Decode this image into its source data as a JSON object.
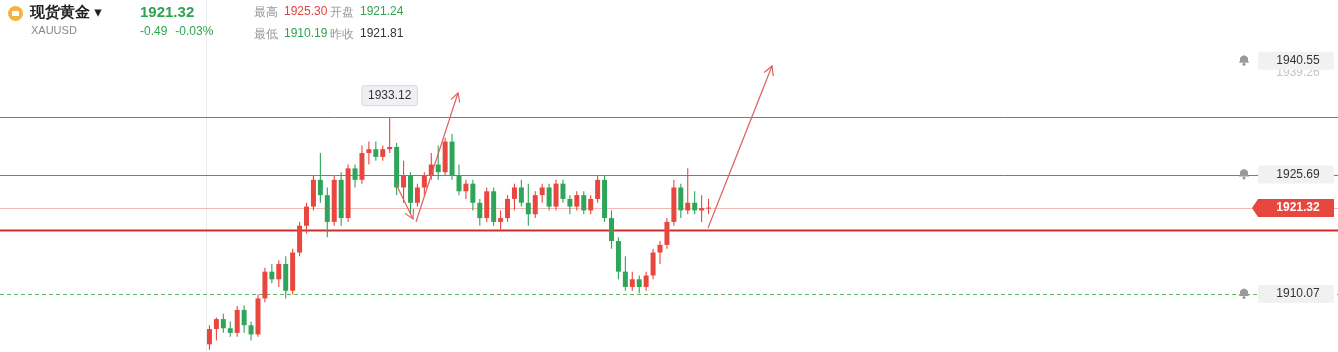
{
  "header": {
    "title": "现货黄金 ▾",
    "symbol": "XAUUSD",
    "price": "1921.32",
    "change": "-0.49",
    "change_percent": "-0.03%",
    "color": "#2ea44f",
    "stats": [
      {
        "label": "最高",
        "value": "1925.30",
        "color": "#e0443b"
      },
      {
        "label": "开盘",
        "value": "1921.24",
        "color": "#2ea44f"
      },
      {
        "label": "最低",
        "value": "1910.19",
        "color": "#2ea44f"
      },
      {
        "label": "昨收",
        "value": "1921.81",
        "color": "#333333"
      }
    ]
  },
  "chart_data": {
    "type": "candlestick",
    "categories": [
      null,
      null,
      null,
      null,
      null,
      null,
      null,
      null,
      null,
      null,
      null,
      null,
      null,
      null,
      null,
      null,
      null,
      null,
      null,
      null,
      null,
      null,
      null,
      null,
      null,
      null,
      null,
      null,
      null,
      null,
      null,
      null,
      null,
      null,
      null,
      null,
      null,
      null,
      null,
      null,
      null,
      null,
      null,
      null,
      null,
      null,
      null,
      null,
      null,
      null,
      null,
      null,
      null,
      null,
      null,
      null,
      null,
      null,
      null,
      null,
      null,
      null,
      null,
      null,
      null,
      null,
      null,
      null,
      null,
      null,
      null,
      null,
      null
    ],
    "open": [
      1903.5,
      1905.5,
      1906.8,
      1905.6,
      1905,
      1908,
      1906,
      1904.8,
      1909.5,
      1913,
      1912,
      1914,
      1910.5,
      1915.5,
      1919,
      1921.5,
      1925,
      1923,
      1919.5,
      1925,
      1920,
      1926.5,
      1925,
      1928.5,
      1929,
      1928,
      1929,
      1929.3,
      1924,
      1925.5,
      1922,
      1924,
      1925.5,
      1927,
      1926,
      1930,
      1925.5,
      1923.5,
      1924.5,
      1922,
      1920,
      1923.5,
      1919.5,
      1920,
      1922.5,
      1924,
      1922,
      1920.5,
      1923,
      1924,
      1921.5,
      1924.5,
      1922.5,
      1921.5,
      1923,
      1921,
      1922.5,
      1925,
      1920,
      1917,
      1913,
      1911,
      1912,
      1911,
      1912.5,
      1915.5,
      1916.5,
      1919.5,
      1924,
      1921,
      1922,
      1921,
      1921.24
    ],
    "high": [
      1906,
      1907,
      1907.5,
      1906.5,
      1908.5,
      1908.6,
      1906.5,
      1910,
      1913.5,
      1914,
      1914.5,
      1915,
      1916,
      1919.5,
      1922,
      1925.5,
      1928.5,
      1924,
      1925.5,
      1926,
      1927,
      1927,
      1929.5,
      1930,
      1930,
      1929.5,
      1933.12,
      1929.8,
      1927.5,
      1926,
      1924.5,
      1926,
      1928.5,
      1929.5,
      1930.5,
      1931,
      1927,
      1925,
      1925,
      1922.5,
      1924,
      1924,
      1921,
      1923,
      1924.5,
      1925,
      1924.5,
      1923.5,
      1924.5,
      1924.5,
      1925,
      1925,
      1923,
      1923.5,
      1923.5,
      1923,
      1925.5,
      1925.5,
      1921,
      1917.5,
      1915,
      1913,
      1912.5,
      1913,
      1916,
      1917,
      1920,
      1925,
      1924.5,
      1926.5,
      1923.5,
      1923,
      1922.5
    ],
    "low": [
      1902.8,
      1904,
      1905,
      1904.5,
      1904.5,
      1905,
      1904,
      1904.5,
      1909,
      1911.5,
      1911,
      1909.5,
      1910,
      1915,
      1918,
      1921,
      1922,
      1917.5,
      1919,
      1919,
      1919.5,
      1924,
      1924.5,
      1927,
      1927.5,
      1927.5,
      1928.5,
      1923,
      1922,
      1920.5,
      1921.5,
      1923,
      1925,
      1925,
      1925.5,
      1925,
      1923,
      1922.5,
      1921,
      1919,
      1919.5,
      1919,
      1918.5,
      1919.5,
      1921,
      1921.5,
      1919,
      1920,
      1922,
      1921,
      1921,
      1922,
      1920.5,
      1921,
      1920.5,
      1920.5,
      1922,
      1919.5,
      1916,
      1912,
      1910.5,
      1910.5,
      1910.19,
      1910.5,
      1912,
      1914,
      1916,
      1919,
      1920,
      1920.5,
      1920.5,
      1919.5,
      1920.5
    ],
    "close": [
      1905.5,
      1906.8,
      1905.6,
      1905,
      1908,
      1906,
      1904.8,
      1909.5,
      1913,
      1912,
      1914,
      1910.5,
      1915.5,
      1919,
      1921.5,
      1925,
      1923,
      1919.5,
      1925,
      1920,
      1926.5,
      1925,
      1928.5,
      1929,
      1928,
      1929,
      1929.3,
      1924,
      1925.5,
      1922,
      1924,
      1925.5,
      1927,
      1926,
      1930,
      1925.5,
      1923.5,
      1924.5,
      1922,
      1920,
      1923.5,
      1919.5,
      1920,
      1922.5,
      1924,
      1922,
      1920.5,
      1923,
      1924,
      1921.5,
      1924.5,
      1922.5,
      1921.5,
      1923,
      1921,
      1922.5,
      1925,
      1920,
      1917,
      1913,
      1911,
      1912,
      1911,
      1912.5,
      1915.5,
      1916.5,
      1919.5,
      1924,
      1921,
      1922,
      1921,
      1921.3,
      1921.32
    ],
    "ylim": [
      1902.5,
      1948.5
    ],
    "tick_labels": false,
    "grid": false,
    "lines": [
      {
        "value": 1933.2,
        "color": "#d9534f"
      },
      {
        "value": 1925.69,
        "color": "#d9534f"
      },
      {
        "value": 1921.32,
        "color": "#f2b8b5"
      },
      {
        "value": 1918.47,
        "color": "#c9302c",
        "line_style": "bold"
      },
      {
        "value": 1910.07,
        "color": "#5cb85c",
        "line_style": "dashed"
      }
    ],
    "price_labels": [
      {
        "value": 1939.26
      },
      {
        "value": 1940.55,
        "marker": "bell"
      },
      {
        "value": 1925.69,
        "marker": "bell"
      },
      {
        "value": 1921.32,
        "color": "#e8473f"
      },
      {
        "value": 1910.07,
        "marker": "bell"
      }
    ],
    "annotations": [
      {
        "label": "1933.12",
        "value": 1933.12
      }
    ]
  }
}
